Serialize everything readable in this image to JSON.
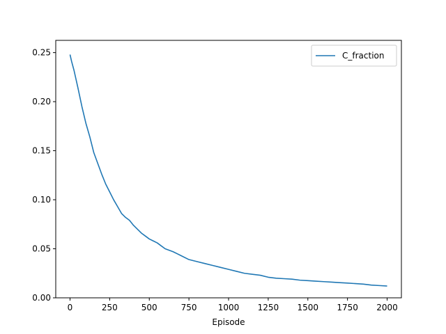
{
  "chart_data": {
    "type": "line",
    "xlabel": "Episode",
    "ylabel": "",
    "xlim": [
      -90,
      2090
    ],
    "ylim": [
      0,
      0.2625
    ],
    "x_ticks": [
      0,
      250,
      500,
      750,
      1000,
      1250,
      1500,
      1750,
      2000
    ],
    "x_tick_labels": [
      "0",
      "250",
      "500",
      "750",
      "1000",
      "1250",
      "1500",
      "1750",
      "2000"
    ],
    "y_ticks": [
      0.0,
      0.05,
      0.1,
      0.15,
      0.2,
      0.25
    ],
    "y_tick_labels": [
      "0.00",
      "0.05",
      "0.10",
      "0.15",
      "0.20",
      "0.25"
    ],
    "grid": false,
    "legend_position": "top-right",
    "series": [
      {
        "name": "C_fraction",
        "color": "#1f77b4",
        "x": [
          0,
          10,
          25,
          50,
          75,
          100,
          125,
          150,
          175,
          200,
          225,
          250,
          275,
          300,
          325,
          350,
          375,
          400,
          425,
          450,
          475,
          500,
          525,
          550,
          575,
          600,
          650,
          700,
          750,
          800,
          850,
          900,
          950,
          1000,
          1050,
          1100,
          1150,
          1200,
          1250,
          1300,
          1350,
          1400,
          1450,
          1500,
          1550,
          1600,
          1650,
          1700,
          1750,
          1800,
          1850,
          1900,
          1950,
          2000
        ],
        "y": [
          0.248,
          0.241,
          0.232,
          0.214,
          0.195,
          0.178,
          0.164,
          0.148,
          0.137,
          0.126,
          0.116,
          0.108,
          0.1,
          0.093,
          0.086,
          0.082,
          0.079,
          0.074,
          0.07,
          0.066,
          0.063,
          0.06,
          0.058,
          0.056,
          0.053,
          0.05,
          0.047,
          0.043,
          0.039,
          0.037,
          0.035,
          0.033,
          0.031,
          0.029,
          0.027,
          0.025,
          0.024,
          0.023,
          0.021,
          0.02,
          0.0195,
          0.019,
          0.018,
          0.0175,
          0.017,
          0.0165,
          0.016,
          0.0155,
          0.015,
          0.0145,
          0.014,
          0.013,
          0.0125,
          0.012
        ]
      }
    ]
  }
}
